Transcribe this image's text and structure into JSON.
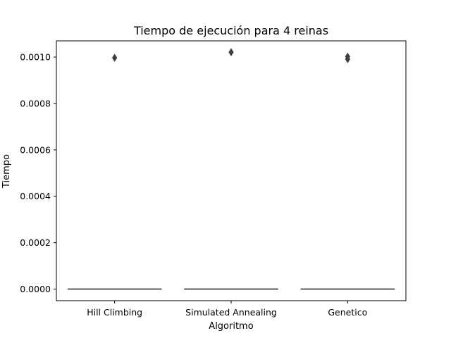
{
  "chart_data": {
    "type": "box",
    "title": "Tiempo de ejecución para 4 reinas",
    "xlabel": "Algoritmo",
    "ylabel": "Tiempo",
    "categories": [
      "Hill Climbing",
      "Simulated Annealing",
      "Genetico"
    ],
    "yticks": [
      "0.0000",
      "0.0002",
      "0.0004",
      "0.0006",
      "0.0008",
      "0.0010"
    ],
    "ylim": [
      -5e-05,
      0.00107
    ],
    "grid": false,
    "boxes": [
      {
        "category": "Hill Climbing",
        "q1": 0,
        "median": 0,
        "q3": 0,
        "whisker_low": 0,
        "whisker_high": 0,
        "outliers": [
          0.000997
        ]
      },
      {
        "category": "Simulated Annealing",
        "q1": 0,
        "median": 0,
        "q3": 0,
        "whisker_low": 0,
        "whisker_high": 0,
        "outliers": [
          0.001021
        ]
      },
      {
        "category": "Genetico",
        "q1": 0,
        "median": 0,
        "q3": 0,
        "whisker_low": 0,
        "whisker_high": 0,
        "outliers": [
          0.000991,
          0.001002
        ]
      }
    ],
    "colors": {
      "box_line": "#3f3f3f",
      "outlier": "#3f3f3f",
      "axes": "#000000"
    }
  }
}
